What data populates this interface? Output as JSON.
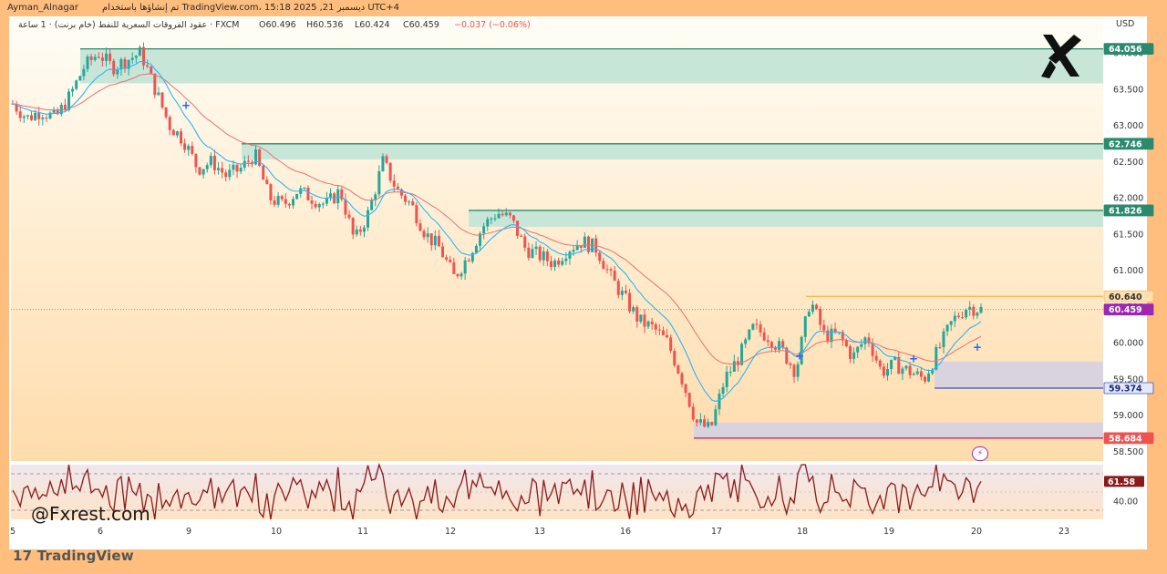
{
  "header": {
    "user": "Ayman_Alnagar",
    "published_info": "تم إنشاؤها باستخدام TradingView.com، 15:18 2025 ,21 ديسمبر UTC+4",
    "symbol_desc": "عقود الفروقات السعرية للنفط (خام برنت) · 1 ساعة · FXCM",
    "open": "O60.496",
    "high": "H60.536",
    "low": "L60.424",
    "close": "C60.459",
    "change": "−0.037 (−0.06%)",
    "currency": "USD"
  },
  "watermark": "@Fxrest.com",
  "platform_logo": "TradingView",
  "colors": {
    "up": "#26a69a",
    "down": "#ef5350",
    "ema_fast": "#29b6f6",
    "ema_slow": "#e57373",
    "resistance_zone": "#c8e6d7",
    "resistance_line": "#2b8a6e",
    "support_zone": "#d9d3df",
    "support_line": "#3f51b5",
    "current_price": "#9c27b0",
    "high_line": "#ffb74d",
    "low_line": "#c2185b",
    "rsi": "#8b1a1a"
  },
  "chart_data": {
    "type": "candlestick",
    "title": "",
    "xlabel": "",
    "ylabel": "",
    "ylim": [
      58.5,
      64.3
    ],
    "y_ticks": [
      "64.000",
      "63.500",
      "63.000",
      "62.500",
      "62.000",
      "61.500",
      "61.000",
      "60.500",
      "60.000",
      "59.500",
      "59.000",
      "58.500"
    ],
    "x_ticks": [
      "5",
      "6",
      "9",
      "10",
      "11",
      "12",
      "13",
      "16",
      "17",
      "18",
      "19",
      "20",
      "23"
    ],
    "price_tags": [
      {
        "label": "64.056",
        "value": 64.056,
        "kind": "resistance"
      },
      {
        "label": "62.746",
        "value": 62.746,
        "kind": "resistance"
      },
      {
        "label": "61.826",
        "value": 61.826,
        "kind": "resistance"
      },
      {
        "label": "60.640",
        "value": 60.64,
        "kind": "high"
      },
      {
        "label": "60.459",
        "value": 60.459,
        "kind": "current"
      },
      {
        "label": "59.374",
        "value": 59.374,
        "kind": "support"
      },
      {
        "label": "58.684",
        "value": 58.684,
        "kind": "low"
      }
    ],
    "zones": [
      {
        "kind": "resistance",
        "top": 64.056,
        "bottom": 63.58
      },
      {
        "kind": "resistance",
        "top": 62.746,
        "bottom": 62.53
      },
      {
        "kind": "resistance",
        "top": 61.826,
        "bottom": 61.6
      },
      {
        "kind": "support",
        "top": 59.74,
        "bottom": 59.374
      },
      {
        "kind": "support",
        "top": 58.9,
        "bottom": 58.684
      }
    ],
    "close_path": [
      63.3,
      63.1,
      63.2,
      63.1,
      63.4,
      63.8,
      64.0,
      63.8,
      63.9,
      64.0,
      63.5,
      63.0,
      62.8,
      62.4,
      62.5,
      62.3,
      62.4,
      62.6,
      62.0,
      61.9,
      62.1,
      62.0,
      61.9,
      62.1,
      61.4,
      61.8,
      62.5,
      62.1,
      61.9,
      61.5,
      61.3,
      60.9,
      61.2,
      61.6,
      61.8,
      61.7,
      61.3,
      61.2,
      61.1,
      61.3,
      61.4,
      61.3,
      60.9,
      60.6,
      60.3,
      60.2,
      60.0,
      59.5,
      58.9,
      58.8,
      59.5,
      59.8,
      60.2,
      60.1,
      59.9,
      59.6,
      60.6,
      60.1,
      60.1,
      59.8,
      60.1,
      59.6,
      59.7,
      59.6,
      59.5,
      59.9,
      60.3,
      60.5,
      60.46
    ],
    "rsi": {
      "label": "61.58",
      "value": 61.58,
      "ticks": [
        "40.00"
      ]
    }
  }
}
